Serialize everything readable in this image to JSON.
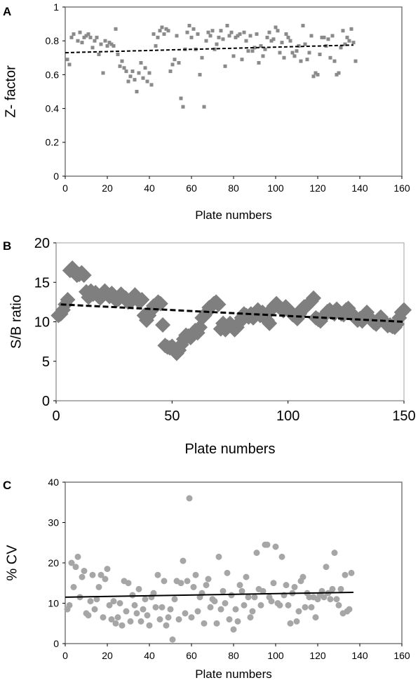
{
  "chart_data": [
    {
      "panel": "A",
      "type": "scatter",
      "ylabel": "Z- factor",
      "xlabel": "Plate numbers",
      "xlim": [
        0,
        160
      ],
      "ylim": [
        0,
        1
      ],
      "xticks": [
        0,
        20,
        40,
        60,
        80,
        100,
        120,
        140,
        160
      ],
      "yticks": [
        0,
        0.2,
        0.4,
        0.6,
        0.8,
        1
      ],
      "ytick_labels": [
        "0",
        "0.2",
        "0.4",
        "0.6",
        "0.8",
        "1"
      ],
      "grid": false,
      "marker_color": "#8a8a8a",
      "trendline": {
        "style": "dashed",
        "x": [
          0,
          137
        ],
        "y": [
          0.73,
          0.775
        ]
      },
      "x": [
        1,
        2,
        3,
        4,
        6,
        7,
        8,
        9,
        10,
        11,
        12,
        13,
        14,
        15,
        16,
        17,
        18,
        19,
        20,
        21,
        22,
        23,
        24,
        25,
        26,
        27,
        28,
        29,
        30,
        31,
        32,
        33,
        34,
        35,
        36,
        37,
        38,
        39,
        40,
        41,
        42,
        43,
        44,
        45,
        46,
        47,
        48,
        49,
        50,
        51,
        52,
        53,
        54,
        55,
        56,
        57,
        58,
        59,
        60,
        61,
        62,
        63,
        64,
        65,
        66,
        67,
        68,
        69,
        70,
        71,
        72,
        73,
        74,
        75,
        76,
        77,
        78,
        79,
        80,
        81,
        82,
        83,
        84,
        85,
        86,
        87,
        88,
        89,
        90,
        91,
        92,
        93,
        94,
        95,
        96,
        97,
        98,
        99,
        100,
        101,
        102,
        103,
        104,
        105,
        106,
        107,
        108,
        109,
        110,
        111,
        112,
        113,
        114,
        115,
        116,
        117,
        118,
        119,
        120,
        121,
        122,
        123,
        124,
        125,
        126,
        127,
        128,
        129,
        130,
        131,
        132,
        133,
        134,
        135,
        136,
        137,
        138
      ],
      "y": [
        0.69,
        0.66,
        0.82,
        0.84,
        0.8,
        0.85,
        0.79,
        0.82,
        0.83,
        0.84,
        0.82,
        0.76,
        0.8,
        0.82,
        0.72,
        0.78,
        0.61,
        0.8,
        0.77,
        0.79,
        0.78,
        0.77,
        0.87,
        0.72,
        0.65,
        0.68,
        0.64,
        0.62,
        0.56,
        0.59,
        0.62,
        0.57,
        0.5,
        0.61,
        0.67,
        0.58,
        0.64,
        0.56,
        0.61,
        0.54,
        0.84,
        0.77,
        0.82,
        0.86,
        0.88,
        0.84,
        0.87,
        0.86,
        0.62,
        0.66,
        0.69,
        0.83,
        0.67,
        0.46,
        0.41,
        0.75,
        0.85,
        0.89,
        0.82,
        0.87,
        0.75,
        0.84,
        0.6,
        0.7,
        0.41,
        0.8,
        0.85,
        0.83,
        0.86,
        0.75,
        0.78,
        0.82,
        0.86,
        0.81,
        0.65,
        0.89,
        0.83,
        0.85,
        0.71,
        0.82,
        0.83,
        0.84,
        0.69,
        0.85,
        0.8,
        0.74,
        0.83,
        0.74,
        0.76,
        0.84,
        0.67,
        0.77,
        0.71,
        0.75,
        0.82,
        0.85,
        0.8,
        0.81,
        0.88,
        0.86,
        0.73,
        0.79,
        0.7,
        0.84,
        0.82,
        0.8,
        0.73,
        0.71,
        0.74,
        0.77,
        0.68,
        0.89,
        0.78,
        0.69,
        0.73,
        0.83,
        0.59,
        0.61,
        0.6,
        0.72,
        0.82,
        0.82,
        0.77,
        0.81,
        0.7,
        0.83,
        0.68,
        0.6,
        0.61,
        0.76,
        0.86,
        0.78,
        0.82,
        0.8,
        0.87,
        0.79,
        0.68
      ]
    },
    {
      "panel": "B",
      "type": "scatter",
      "ylabel": "S/B ratio",
      "xlabel": "Plate numbers",
      "xlim": [
        0,
        150
      ],
      "ylim": [
        0,
        20
      ],
      "xticks": [
        0,
        50,
        100,
        150
      ],
      "yticks": [
        0,
        5,
        10,
        15,
        20
      ],
      "ytick_labels": [
        "0",
        "5",
        "10",
        "15",
        "20"
      ],
      "grid": false,
      "marker_color": "#7f7f7f",
      "trendline": {
        "style": "dashed",
        "x": [
          2,
          150
        ],
        "y": [
          12.2,
          10.0
        ]
      },
      "x": [
        1,
        2,
        3,
        4,
        5,
        6,
        7,
        8,
        9,
        10,
        11,
        12,
        13,
        14,
        15,
        16,
        17,
        18,
        19,
        20,
        21,
        22,
        23,
        24,
        25,
        26,
        27,
        28,
        29,
        30,
        31,
        32,
        33,
        34,
        35,
        36,
        37,
        38,
        39,
        40,
        41,
        42,
        43,
        44,
        45,
        46,
        47,
        48,
        49,
        50,
        51,
        52,
        53,
        54,
        55,
        56,
        57,
        58,
        59,
        60,
        61,
        62,
        63,
        64,
        65,
        66,
        67,
        68,
        69,
        70,
        71,
        72,
        73,
        74,
        75,
        76,
        77,
        78,
        79,
        80,
        81,
        82,
        83,
        84,
        85,
        86,
        87,
        88,
        89,
        90,
        91,
        92,
        93,
        94,
        95,
        96,
        97,
        98,
        99,
        100,
        101,
        102,
        103,
        104,
        105,
        106,
        107,
        108,
        109,
        110,
        111,
        112,
        113,
        114,
        115,
        116,
        117,
        118,
        119,
        120,
        121,
        122,
        123,
        124,
        125,
        126,
        127,
        128,
        129,
        130,
        131,
        132,
        133,
        134,
        135,
        136,
        137,
        138,
        139,
        140,
        141,
        142,
        143,
        144,
        145,
        146,
        147,
        148,
        149,
        150
      ],
      "y": [
        10.8,
        11.0,
        11.5,
        12.2,
        12.8,
        16.5,
        16.8,
        16.3,
        15.9,
        16.0,
        16.2,
        15.9,
        13.8,
        13.1,
        13.9,
        13.5,
        13.7,
        13.4,
        13.0,
        13.3,
        13.9,
        13.5,
        13.2,
        13.6,
        13.0,
        12.7,
        12.9,
        13.5,
        13.2,
        13.0,
        12.5,
        12.7,
        12.8,
        13.4,
        12.9,
        12.5,
        12.8,
        10.8,
        10.2,
        10.8,
        11.4,
        12.0,
        12.2,
        12.5,
        12.3,
        9.6,
        7.0,
        6.8,
        6.7,
        6.9,
        6.5,
        6.0,
        6.4,
        7.1,
        7.8,
        8.3,
        8.2,
        8.0,
        8.5,
        8.9,
        8.6,
        9.3,
        10.5,
        10.8,
        11.2,
        11.8,
        12.0,
        12.3,
        12.5,
        12.2,
        9.1,
        9.8,
        9.0,
        9.5,
        9.8,
        9.4,
        9.0,
        9.3,
        9.9,
        10.5,
        11.0,
        10.8,
        10.6,
        11.0,
        10.5,
        10.9,
        11.5,
        10.8,
        11.2,
        10.7,
        10.2,
        9.8,
        11.6,
        12.0,
        12.3,
        11.9,
        11.7,
        11.4,
        11.9,
        11.6,
        11.3,
        10.9,
        10.7,
        10.4,
        11.0,
        11.6,
        11.9,
        12.0,
        12.3,
        12.6,
        13.0,
        10.5,
        10.3,
        10.1,
        10.6,
        10.9,
        11.3,
        11.5,
        11.2,
        11.0,
        11.6,
        11.3,
        11.0,
        10.9,
        11.5,
        11.7,
        11.2,
        10.8,
        10.5,
        10.2,
        10.4,
        10.1,
        10.8,
        11.2,
        10.6,
        10.2,
        9.9,
        9.7,
        10.3,
        10.6,
        10.2,
        9.8,
        9.5,
        9.6,
        9.4,
        9.3,
        9.7,
        10.5,
        11.2,
        11.5
      ]
    },
    {
      "panel": "C",
      "type": "scatter",
      "ylabel": "% CV",
      "xlabel": "Plate numbers",
      "xlim": [
        0,
        160
      ],
      "ylim": [
        0,
        40
      ],
      "xticks": [
        0,
        20,
        40,
        60,
        80,
        100,
        120,
        140,
        160
      ],
      "yticks": [
        0,
        10,
        20,
        30,
        40
      ],
      "ytick_labels": [
        "0",
        "10",
        "20",
        "30",
        "40"
      ],
      "grid": false,
      "marker_color": "#a6a6a6",
      "trendline": {
        "style": "solid",
        "x": [
          0,
          137
        ],
        "y": [
          11.5,
          12.7
        ]
      },
      "x": [
        1,
        2,
        3,
        4,
        5,
        6,
        7,
        8,
        9,
        10,
        11,
        12,
        13,
        14,
        15,
        16,
        17,
        18,
        19,
        20,
        21,
        22,
        23,
        24,
        25,
        26,
        27,
        28,
        29,
        30,
        31,
        32,
        33,
        34,
        35,
        36,
        37,
        38,
        39,
        40,
        41,
        42,
        43,
        44,
        45,
        46,
        47,
        48,
        49,
        50,
        51,
        52,
        53,
        54,
        55,
        56,
        57,
        58,
        59,
        60,
        61,
        62,
        63,
        64,
        65,
        66,
        67,
        68,
        69,
        70,
        71,
        72,
        73,
        74,
        75,
        76,
        77,
        78,
        79,
        80,
        81,
        82,
        83,
        84,
        85,
        86,
        87,
        88,
        89,
        90,
        91,
        92,
        93,
        94,
        95,
        96,
        97,
        98,
        99,
        100,
        101,
        102,
        103,
        104,
        105,
        106,
        107,
        108,
        109,
        110,
        111,
        112,
        113,
        114,
        115,
        116,
        117,
        118,
        119,
        120,
        121,
        122,
        123,
        124,
        125,
        126,
        127,
        128,
        129,
        130,
        131,
        132,
        133,
        134,
        135,
        136
      ],
      "y": [
        8.5,
        9.5,
        20.0,
        14.0,
        19.0,
        21.5,
        11.5,
        16.5,
        18.0,
        7.5,
        7.0,
        10.5,
        17.0,
        8.5,
        11.0,
        14.0,
        17.0,
        6.5,
        16.0,
        18.5,
        9.5,
        6.0,
        10.5,
        5.0,
        6.5,
        10.0,
        4.5,
        15.5,
        8.0,
        15.0,
        5.5,
        12.0,
        9.5,
        7.5,
        13.5,
        5.5,
        8.5,
        11.0,
        7.0,
        4.5,
        11.5,
        12.5,
        9.0,
        17.0,
        6.0,
        9.0,
        15.5,
        4.5,
        6.5,
        8.5,
        1.0,
        11.0,
        15.5,
        6.0,
        15.0,
        20.5,
        7.5,
        15.5,
        36.0,
        6.5,
        14.0,
        17.0,
        8.0,
        11.5,
        12.5,
        5.0,
        14.5,
        16.0,
        9.0,
        11.0,
        10.5,
        5.0,
        21.5,
        8.5,
        13.0,
        10.0,
        17.5,
        6.0,
        12.0,
        3.5,
        8.5,
        5.5,
        14.5,
        13.0,
        9.5,
        16.5,
        11.5,
        6.5,
        8.0,
        11.5,
        22.5,
        13.5,
        9.5,
        13.0,
        24.5,
        24.5,
        11.5,
        10.5,
        15.0,
        24.0,
        10.0,
        9.5,
        21.5,
        12.0,
        14.5,
        9.5,
        5.0,
        12.5,
        14.0,
        5.5,
        8.0,
        15.5,
        16.5,
        9.0,
        12.5,
        11.5,
        9.0,
        11.5,
        6.5,
        11.0,
        12.0,
        13.0,
        11.5,
        19.0,
        12.5,
        11.0,
        13.5,
        22.5,
        11.0,
        9.5,
        13.5,
        7.5,
        17.0,
        8.0,
        8.5,
        17.5
      ]
    }
  ]
}
